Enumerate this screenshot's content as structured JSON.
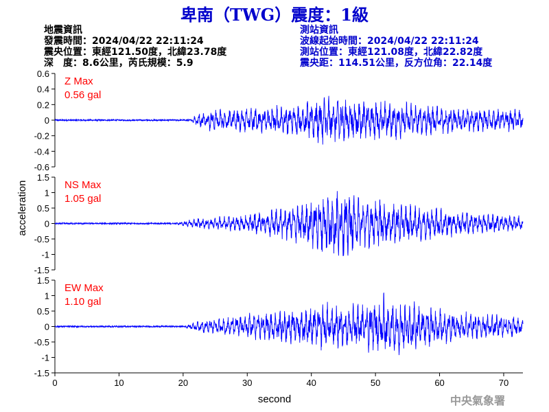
{
  "title": "卑南（TWG）震度：1級",
  "earthquake": {
    "heading": "地震資訊",
    "time": "發震時間：2024/04/22 22:11:24",
    "epicenter": "震央位置：東經121.50度，北緯23.78度",
    "depth_magnitude": "深　度：8.6公里，芮氏規模：5.9"
  },
  "station": {
    "heading": "測站資訊",
    "wave_start": "波線起始時間：2024/04/22 22:11:24",
    "location": "測站位置：東經121.08度，北緯22.82度",
    "distance": "震央距：114.51公里，反方位角：22.14度"
  },
  "agency": "中央氣象署",
  "colors": {
    "trace": "#0000ff",
    "label": "#ff0000",
    "title": "#0000cc",
    "axis": "#000000"
  },
  "chart_data": {
    "type": "line",
    "xlabel": "second",
    "ylabel": "acceleration",
    "xlim": [
      0,
      73
    ],
    "x_ticks": [
      0,
      10,
      20,
      30,
      40,
      50,
      60,
      70
    ],
    "series": [
      {
        "name": "Z",
        "label": "Z Max",
        "max_label": "0.56 gal",
        "max_abs": 0.56,
        "ylim": [
          -0.6,
          0.6
        ],
        "y_ticks": [
          0.6,
          0.4,
          0.2,
          0,
          -0.2,
          -0.4,
          -0.6
        ],
        "tick_labels": [
          "0.6",
          "0.4",
          "0.2",
          "0",
          "-0.2",
          "-0.4",
          "-0.6"
        ],
        "onset": 21.5,
        "envelope": [
          [
            0,
            0.01
          ],
          [
            21,
            0.01
          ],
          [
            22,
            0.12
          ],
          [
            24,
            0.2
          ],
          [
            30,
            0.25
          ],
          [
            38,
            0.3
          ],
          [
            41,
            0.45
          ],
          [
            44,
            0.5
          ],
          [
            48,
            0.4
          ],
          [
            55,
            0.35
          ],
          [
            62,
            0.25
          ],
          [
            73,
            0.2
          ]
        ]
      },
      {
        "name": "NS",
        "label": "NS Max",
        "max_label": "1.05 gal",
        "max_abs": 1.05,
        "ylim": [
          -1.5,
          1.5
        ],
        "y_ticks": [
          1.5,
          1,
          0.5,
          0,
          -0.5,
          -1,
          -1.5
        ],
        "tick_labels": [
          "1.5",
          "1",
          "0.5",
          "0",
          "-0.5",
          "-1",
          "-1.5"
        ],
        "onset": 19.0,
        "envelope": [
          [
            0,
            0.0
          ],
          [
            19,
            0.02
          ],
          [
            22,
            0.1
          ],
          [
            28,
            0.15
          ],
          [
            35,
            0.3
          ],
          [
            40,
            0.45
          ],
          [
            44,
            0.75
          ],
          [
            48,
            0.5
          ],
          [
            54,
            0.4
          ],
          [
            60,
            0.3
          ],
          [
            66,
            0.2
          ],
          [
            73,
            0.15
          ]
        ]
      },
      {
        "name": "EW",
        "label": "EW Max",
        "max_label": "1.10 gal",
        "max_abs": 1.1,
        "ylim": [
          -1.5,
          1.5
        ],
        "y_ticks": [
          1.5,
          1,
          0.5,
          0,
          -0.5,
          -1,
          -1.5
        ],
        "tick_labels": [
          "1.5",
          "1",
          "0.5",
          "0",
          "-0.5",
          "-1",
          "-1.5"
        ],
        "onset": 20.5,
        "envelope": [
          [
            0,
            0.0
          ],
          [
            20,
            0.02
          ],
          [
            23,
            0.12
          ],
          [
            30,
            0.25
          ],
          [
            38,
            0.35
          ],
          [
            42,
            0.45
          ],
          [
            46,
            0.4
          ],
          [
            51,
            0.6
          ],
          [
            55,
            0.5
          ],
          [
            60,
            0.35
          ],
          [
            66,
            0.25
          ],
          [
            73,
            0.2
          ]
        ]
      }
    ]
  }
}
